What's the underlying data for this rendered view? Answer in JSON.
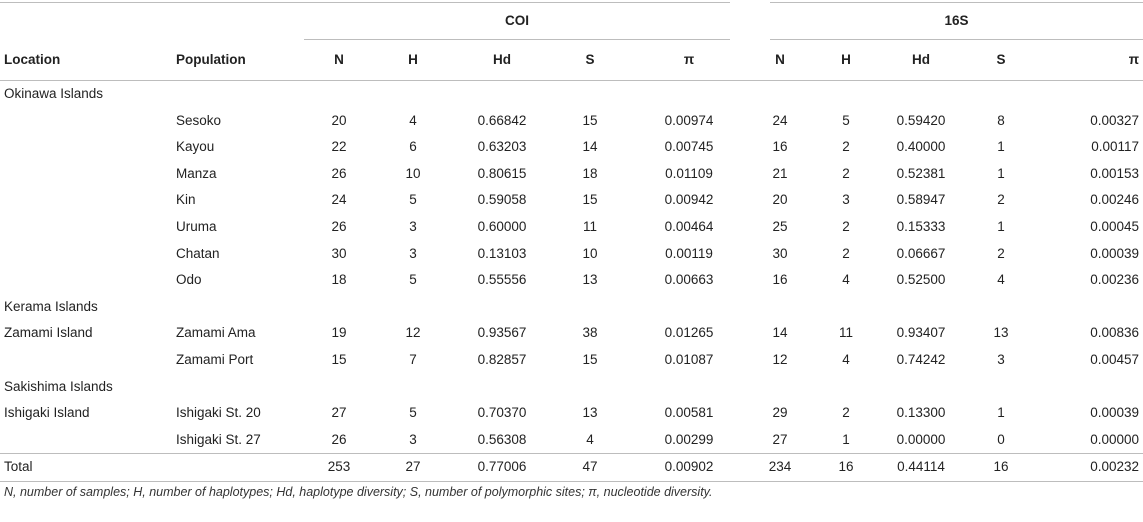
{
  "groups": {
    "coi": "COI",
    "s16": "16S"
  },
  "headers": {
    "location": "Location",
    "population": "Population",
    "coi_n": "N",
    "coi_h": "H",
    "coi_hd": "Hd",
    "coi_s": "S",
    "coi_pi": "π",
    "s16_n": "N",
    "s16_h": "H",
    "s16_hd": "Hd",
    "s16_s": "S",
    "s16_pi": "π"
  },
  "sections": {
    "okinawa": "Okinawa Islands",
    "kerama": "Kerama Islands",
    "sakishima": "Sakishima Islands"
  },
  "rows": [
    {
      "location": "",
      "population": "Sesoko",
      "coi": [
        "20",
        "4",
        "0.66842",
        "15",
        "0.00974"
      ],
      "s16": [
        "24",
        "5",
        "0.59420",
        "8",
        "0.00327"
      ]
    },
    {
      "location": "",
      "population": "Kayou",
      "coi": [
        "22",
        "6",
        "0.63203",
        "14",
        "0.00745"
      ],
      "s16": [
        "16",
        "2",
        "0.40000",
        "1",
        "0.00117"
      ]
    },
    {
      "location": "",
      "population": "Manza",
      "coi": [
        "26",
        "10",
        "0.80615",
        "18",
        "0.01109"
      ],
      "s16": [
        "21",
        "2",
        "0.52381",
        "1",
        "0.00153"
      ]
    },
    {
      "location": "",
      "population": "Kin",
      "coi": [
        "24",
        "5",
        "0.59058",
        "15",
        "0.00942"
      ],
      "s16": [
        "20",
        "3",
        "0.58947",
        "2",
        "0.00246"
      ]
    },
    {
      "location": "",
      "population": "Uruma",
      "coi": [
        "26",
        "3",
        "0.60000",
        "11",
        "0.00464"
      ],
      "s16": [
        "25",
        "2",
        "0.15333",
        "1",
        "0.00045"
      ]
    },
    {
      "location": "",
      "population": "Chatan",
      "coi": [
        "30",
        "3",
        "0.13103",
        "10",
        "0.00119"
      ],
      "s16": [
        "30",
        "2",
        "0.06667",
        "2",
        "0.00039"
      ]
    },
    {
      "location": "",
      "population": "Odo",
      "coi": [
        "18",
        "5",
        "0.55556",
        "13",
        "0.00663"
      ],
      "s16": [
        "16",
        "4",
        "0.52500",
        "4",
        "0.00236"
      ]
    },
    {
      "location": "Zamami Island",
      "population": "Zamami Ama",
      "coi": [
        "19",
        "12",
        "0.93567",
        "38",
        "0.01265"
      ],
      "s16": [
        "14",
        "11",
        "0.93407",
        "13",
        "0.00836"
      ]
    },
    {
      "location": "",
      "population": "Zamami Port",
      "coi": [
        "15",
        "7",
        "0.82857",
        "15",
        "0.01087"
      ],
      "s16": [
        "12",
        "4",
        "0.74242",
        "3",
        "0.00457"
      ]
    },
    {
      "location": "Ishigaki Island",
      "population": "Ishigaki St. 20",
      "coi": [
        "27",
        "5",
        "0.70370",
        "13",
        "0.00581"
      ],
      "s16": [
        "29",
        "2",
        "0.13300",
        "1",
        "0.00039"
      ]
    },
    {
      "location": "",
      "population": "Ishigaki St. 27",
      "coi": [
        "26",
        "3",
        "0.56308",
        "4",
        "0.00299"
      ],
      "s16": [
        "27",
        "1",
        "0.00000",
        "0",
        "0.00000"
      ]
    }
  ],
  "total": {
    "label": "Total",
    "coi": [
      "253",
      "27",
      "0.77006",
      "47",
      "0.00902"
    ],
    "s16": [
      "234",
      "16",
      "0.44114",
      "16",
      "0.00232"
    ]
  },
  "footnote": "N, number of samples; H, number of haplotypes; Hd, haplotype diversity; S, number of polymorphic sites; π, nucleotide diversity."
}
